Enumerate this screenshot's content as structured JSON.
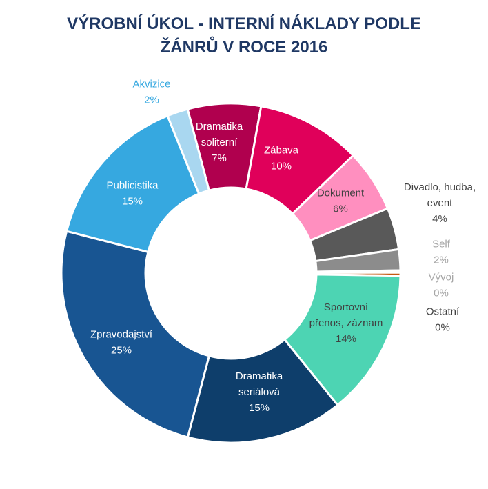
{
  "chart_data": {
    "type": "pie",
    "title": "VÝROBNÍ ÚKOL - INTERNÍ NÁKLADY PODLE ŽÁNRŮ V ROCE 2016",
    "title_lines": [
      "VÝROBNÍ ÚKOL - INTERNÍ NÁKLADY PODLE",
      "ŽÁNRŮ V ROCE 2016"
    ],
    "donut": true,
    "legend": "none",
    "slices": [
      {
        "label": [
          "Dramatika",
          "soliterní"
        ],
        "pct_label": "7%",
        "value": 7.0,
        "color": "#b0004e",
        "text_color": "#ffffff"
      },
      {
        "label": [
          "Zábava"
        ],
        "pct_label": "10%",
        "value": 10.0,
        "color": "#e0005a",
        "text_color": "#ffffff"
      },
      {
        "label": [
          "Dokument"
        ],
        "pct_label": "6%",
        "value": 6.0,
        "color": "#ff8fbf",
        "text_color": "#404040"
      },
      {
        "label": [
          "Divadlo, hudba,",
          "event"
        ],
        "pct_label": "4%",
        "value": 4.0,
        "color": "#595959",
        "text_color": "#404040"
      },
      {
        "label": [
          "Self"
        ],
        "pct_label": "2%",
        "value": 2.0,
        "color": "#8c8c8c",
        "text_color": "#a6a6a6"
      },
      {
        "label": [
          "Vývoj"
        ],
        "pct_label": "0%",
        "value": 0.2,
        "color": "#c8c8c8",
        "text_color": "#a6a6a6"
      },
      {
        "label": [
          "Ostatní"
        ],
        "pct_label": "0%",
        "value": 0.3,
        "color": "#c55a11",
        "text_color": "#404040"
      },
      {
        "label": [
          "Sportovní",
          "přenos, záznam"
        ],
        "pct_label": "14%",
        "value": 14.0,
        "color": "#4dd4b3",
        "text_color": "#404040"
      },
      {
        "label": [
          "Dramatika",
          "seriálová"
        ],
        "pct_label": "15%",
        "value": 15.0,
        "color": "#0e3e6b",
        "text_color": "#ffffff"
      },
      {
        "label": [
          "Zpravodajství"
        ],
        "pct_label": "25%",
        "value": 25.0,
        "color": "#185592",
        "text_color": "#ffffff"
      },
      {
        "label": [
          "Publicistika"
        ],
        "pct_label": "15%",
        "value": 15.0,
        "color": "#36a8e0",
        "text_color": "#ffffff"
      },
      {
        "label": [
          "Akvizice"
        ],
        "pct_label": "2%",
        "value": 2.0,
        "color": "#a9d7f0",
        "text_color": "#36a8e0"
      }
    ]
  }
}
